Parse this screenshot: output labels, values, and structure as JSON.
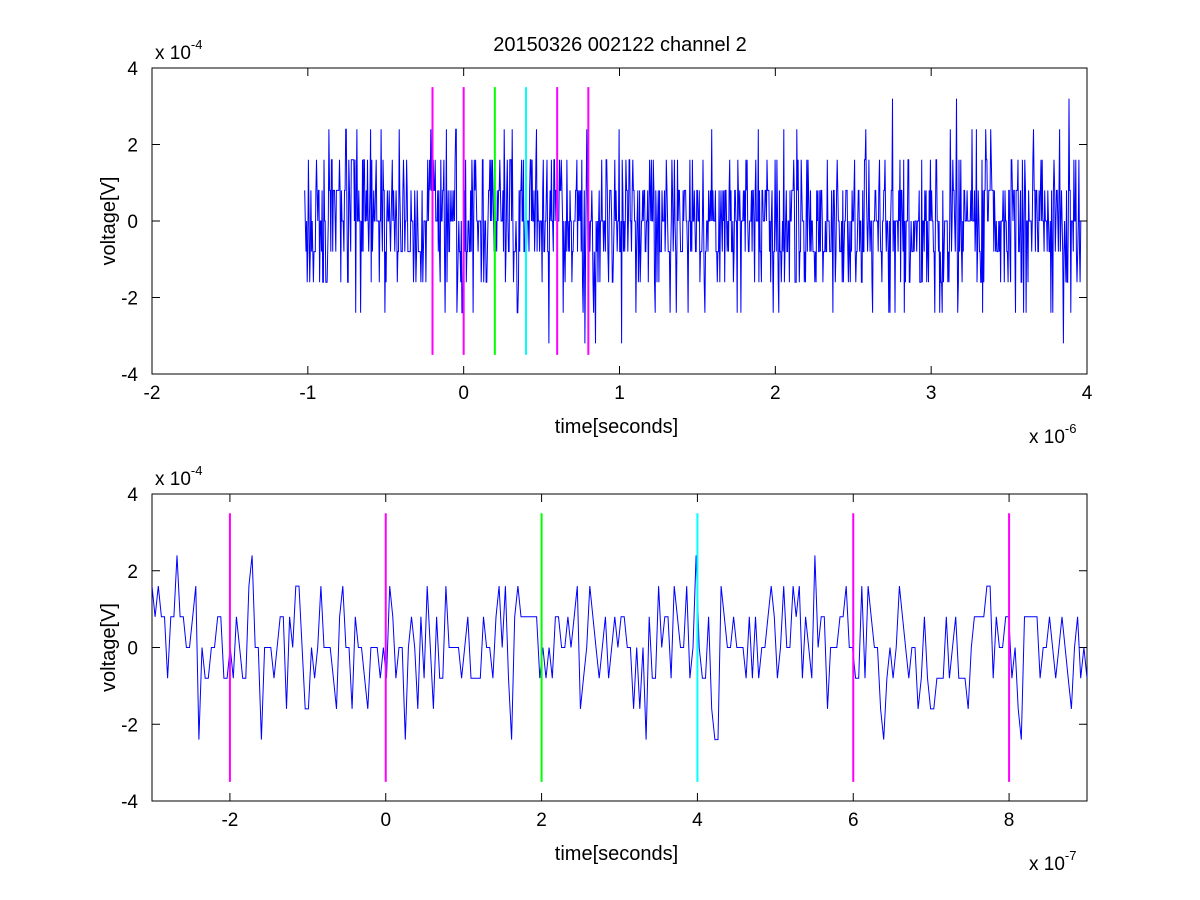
{
  "figure": {
    "title": "20150326 002122 channel 2"
  },
  "chart_data": [
    {
      "type": "line",
      "title": "20150326 002122 channel 2",
      "xlabel": "time[seconds]",
      "ylabel": "voltage[V]",
      "xlim": [
        -2,
        4
      ],
      "ylim": [
        -4,
        4
      ],
      "xticks": [
        "-2",
        "-1",
        "0",
        "1",
        "2",
        "3",
        "4"
      ],
      "yticks": [
        "-4",
        "-2",
        "0",
        "2",
        "4"
      ],
      "x_multiplier": {
        "base": "x 10",
        "exp": "-6"
      },
      "y_multiplier": {
        "base": "x 10",
        "exp": "-4"
      },
      "grid": false,
      "series": [
        {
          "color": "#0000ff",
          "x_range": [
            -1.02,
            3.96
          ],
          "quantum": 0.8,
          "y_range": [
            -3.2,
            3.2
          ],
          "noise_seed": 17
        }
      ],
      "markers": [
        {
          "x": -0.2,
          "color": "#ff00ff"
        },
        {
          "x": 0.0,
          "color": "#ff00ff"
        },
        {
          "x": 0.2,
          "color": "#00ff00"
        },
        {
          "x": 0.4,
          "color": "#00ffff"
        },
        {
          "x": 0.6,
          "color": "#ff00ff"
        },
        {
          "x": 0.8,
          "color": "#ff00ff"
        }
      ],
      "marker_span": [
        -3.5,
        3.5
      ]
    },
    {
      "type": "line",
      "title": "",
      "xlabel": "time[seconds]",
      "ylabel": "voltage[V]",
      "xlim": [
        -3,
        9
      ],
      "ylim": [
        -4,
        4
      ],
      "xticks": [
        "-2",
        "0",
        "2",
        "4",
        "6",
        "8"
      ],
      "yticks": [
        "-4",
        "-2",
        "0",
        "2",
        "4"
      ],
      "x_multiplier": {
        "base": "x 10",
        "exp": "-7"
      },
      "y_multiplier": {
        "base": "x 10",
        "exp": "-4"
      },
      "grid": false,
      "series": [
        {
          "color": "#0000ff",
          "x_range": [
            -3,
            9
          ],
          "quantum": 0.8,
          "y_range": [
            -3.2,
            2.4
          ],
          "noise_seed": 42
        }
      ],
      "markers": [
        {
          "x": -2,
          "color": "#ff00ff"
        },
        {
          "x": 0,
          "color": "#ff00ff"
        },
        {
          "x": 2,
          "color": "#00ff00"
        },
        {
          "x": 4,
          "color": "#00ffff"
        },
        {
          "x": 6,
          "color": "#ff00ff"
        },
        {
          "x": 8,
          "color": "#ff00ff"
        }
      ],
      "marker_span": [
        -3.5,
        3.5
      ]
    }
  ]
}
